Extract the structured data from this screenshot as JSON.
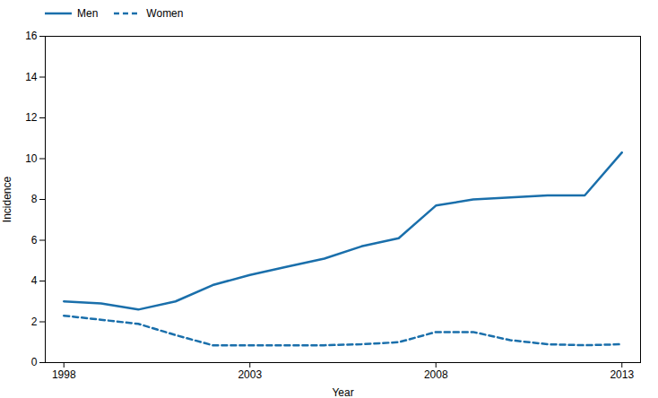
{
  "chart_data": {
    "type": "line",
    "xlabel": "Year",
    "ylabel": "Incidence",
    "x": [
      1998,
      1999,
      2000,
      2001,
      2002,
      2003,
      2004,
      2005,
      2006,
      2007,
      2008,
      2009,
      2010,
      2011,
      2012,
      2013
    ],
    "series": [
      {
        "name": "Men",
        "color": "#1a6fab",
        "line_style": "solid",
        "values": [
          3.0,
          2.9,
          2.6,
          3.0,
          3.8,
          4.3,
          4.7,
          5.1,
          5.7,
          6.1,
          7.7,
          8.0,
          8.1,
          8.2,
          8.2,
          10.3
        ]
      },
      {
        "name": "Women",
        "color": "#1a6fab",
        "line_style": "dashed",
        "values": [
          2.3,
          2.1,
          1.9,
          1.35,
          0.85,
          0.85,
          0.85,
          0.85,
          0.9,
          1.0,
          1.5,
          1.5,
          1.1,
          0.9,
          0.85,
          0.9
        ]
      }
    ],
    "xlim": [
      1997.5,
      2013.5
    ],
    "xticks": [
      1998,
      2003,
      2008,
      2013
    ],
    "ylim": [
      0,
      16
    ],
    "yticks": [
      0,
      2,
      4,
      6,
      8,
      10,
      12,
      14,
      16
    ],
    "grid": false,
    "legend": "upper left"
  }
}
